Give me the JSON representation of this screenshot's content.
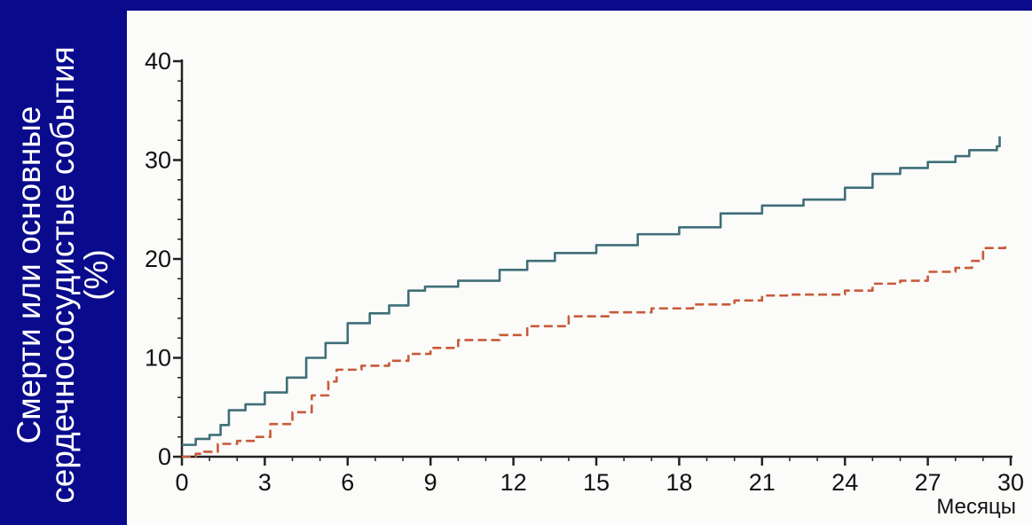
{
  "chart_data": {
    "type": "line",
    "ylabel": "Смерти или основные сердечнососудистые события (%)",
    "xlabel": "Месяцы",
    "xlim": [
      0,
      30
    ],
    "ylim": [
      0,
      40
    ],
    "xticks": [
      "0",
      "3",
      "6",
      "9",
      "12",
      "15",
      "18",
      "21",
      "24",
      "27",
      "30"
    ],
    "yticks": [
      "0",
      "10",
      "20",
      "30",
      "40"
    ],
    "series": [
      {
        "color": "#3f6f78",
        "style": "solid",
        "x": [
          0,
          0.5,
          1.0,
          1.4,
          1.7,
          2.3,
          3.0,
          3.8,
          4.5,
          5.2,
          6.0,
          6.8,
          7.5,
          8.2,
          8.8,
          10.0,
          11.5,
          12.5,
          13.5,
          15.0,
          16.5,
          18.0,
          19.5,
          21.0,
          22.5,
          24.0,
          25.0,
          26.0,
          27.0,
          28.0,
          28.5,
          29.5,
          29.6
        ],
        "y": [
          1.2,
          1.8,
          2.2,
          3.2,
          4.7,
          5.3,
          6.5,
          8.0,
          10.0,
          11.5,
          13.5,
          14.5,
          15.3,
          16.8,
          17.2,
          17.8,
          18.9,
          19.8,
          20.6,
          21.4,
          22.5,
          23.2,
          24.6,
          25.4,
          26.0,
          27.2,
          28.6,
          29.2,
          29.8,
          30.4,
          31.0,
          31.4,
          32.4
        ]
      },
      {
        "color": "#c85a3a",
        "style": "dashed",
        "x": [
          0,
          0.5,
          0.8,
          1.3,
          2.0,
          2.7,
          3.2,
          4.0,
          4.7,
          5.3,
          5.6,
          6.5,
          7.5,
          8.2,
          9.0,
          10.0,
          11.5,
          12.5,
          14.0,
          15.5,
          17.0,
          18.5,
          20.0,
          21.0,
          22.0,
          24.0,
          25.0,
          26.0,
          27.0,
          28.0,
          28.6,
          29.0,
          29.8
        ],
        "y": [
          0,
          0.3,
          0.5,
          1.3,
          1.6,
          2.0,
          3.3,
          4.5,
          6.2,
          7.6,
          8.8,
          9.2,
          9.7,
          10.4,
          11.0,
          11.8,
          12.3,
          13.2,
          14.2,
          14.6,
          15.0,
          15.4,
          15.8,
          16.3,
          16.4,
          16.8,
          17.5,
          17.8,
          18.7,
          19.1,
          19.8,
          21.1,
          21.4
        ]
      }
    ]
  }
}
